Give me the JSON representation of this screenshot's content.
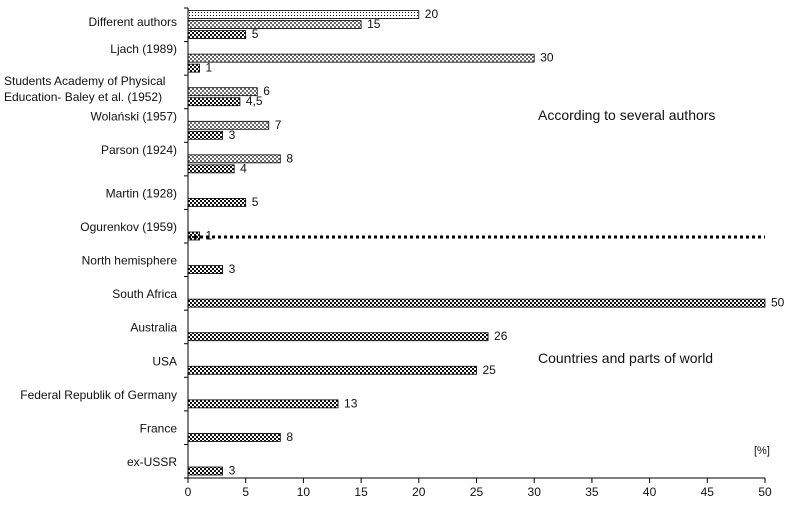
{
  "chart_data": {
    "type": "bar",
    "orientation": "horizontal",
    "xlim": [
      0,
      50
    ],
    "x_ticks": [
      0,
      5,
      10,
      15,
      20,
      25,
      30,
      35,
      40,
      45,
      50
    ],
    "unit_label": "[%]",
    "grid": false,
    "categories": [
      {
        "label_lines": [
          "Different authors"
        ],
        "bars": [
          {
            "pattern": "dots",
            "value": 20,
            "label": "20"
          },
          {
            "pattern": "check-light",
            "value": 15,
            "label": "15"
          },
          {
            "pattern": "check-dark",
            "value": 5,
            "label": "5"
          }
        ]
      },
      {
        "label_lines": [
          "Ljach (1989)"
        ],
        "bars": [
          {
            "pattern": "check-light",
            "value": 30,
            "label": "30"
          },
          {
            "pattern": "check-dark",
            "value": 1,
            "label": "1"
          }
        ]
      },
      {
        "label_lines": [
          "Students Academy of Physical",
          "Education- Baley et al. (1952)"
        ],
        "bars": [
          {
            "pattern": "check-light",
            "value": 6,
            "label": "6"
          },
          {
            "pattern": "check-dark",
            "value": 4.5,
            "label": "4,5"
          }
        ]
      },
      {
        "label_lines": [
          "Wolański (1957)"
        ],
        "bars": [
          {
            "pattern": "check-light",
            "value": 7,
            "label": "7"
          },
          {
            "pattern": "check-dark",
            "value": 3,
            "label": "3"
          }
        ]
      },
      {
        "label_lines": [
          "Parson (1924)"
        ],
        "bars": [
          {
            "pattern": "check-light",
            "value": 8,
            "label": "8"
          },
          {
            "pattern": "check-dark",
            "value": 4,
            "label": "4"
          }
        ]
      },
      {
        "label_lines": [
          "Martin (1928)"
        ],
        "bars": [
          {
            "pattern": "check-dark",
            "value": 5,
            "label": "5"
          }
        ]
      },
      {
        "label_lines": [
          "Ogurenkov (1959)"
        ],
        "bars": [
          {
            "pattern": "check-dark",
            "value": 1,
            "label": "1"
          }
        ]
      },
      {
        "label_lines": [
          "North hemisphere"
        ],
        "bars": [
          {
            "pattern": "check-dark",
            "value": 3,
            "label": "3"
          }
        ]
      },
      {
        "label_lines": [
          "South Africa"
        ],
        "bars": [
          {
            "pattern": "check-dark",
            "value": 50,
            "label": "50"
          }
        ]
      },
      {
        "label_lines": [
          "Australia"
        ],
        "bars": [
          {
            "pattern": "check-dark",
            "value": 26,
            "label": "26"
          }
        ]
      },
      {
        "label_lines": [
          "USA"
        ],
        "bars": [
          {
            "pattern": "check-dark",
            "value": 25,
            "label": "25"
          }
        ]
      },
      {
        "label_lines": [
          "Federal Republik of Germany"
        ],
        "bars": [
          {
            "pattern": "check-dark",
            "value": 13,
            "label": "13"
          }
        ]
      },
      {
        "label_lines": [
          "France"
        ],
        "bars": [
          {
            "pattern": "check-dark",
            "value": 8,
            "label": "8"
          }
        ]
      },
      {
        "label_lines": [
          "ex-USSR"
        ],
        "bars": [
          {
            "pattern": "check-dark",
            "value": 3,
            "label": "3"
          }
        ]
      }
    ],
    "annotations": [
      {
        "text": "According to several authors",
        "group": "upper"
      },
      {
        "text": "Countries and parts of world",
        "group": "lower"
      }
    ],
    "separator": {
      "style": "dotted",
      "after_category_index": 6
    }
  }
}
